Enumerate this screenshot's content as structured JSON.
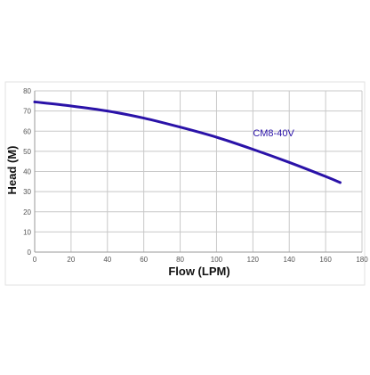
{
  "chart_data": {
    "type": "line",
    "title": "",
    "xlabel": "Flow (LPM)",
    "ylabel": "Head (M)",
    "xlim": [
      0,
      180
    ],
    "ylim": [
      0,
      80
    ],
    "x_ticks": [
      0,
      20,
      40,
      60,
      80,
      100,
      120,
      140,
      160,
      180
    ],
    "y_ticks": [
      0,
      10,
      20,
      30,
      40,
      50,
      60,
      70,
      80
    ],
    "grid": true,
    "legend": "none",
    "series": [
      {
        "name": "CM8-40V",
        "color": "#2a12a8",
        "x": [
          0,
          20,
          40,
          60,
          80,
          100,
          120,
          140,
          160,
          168
        ],
        "y": [
          74.5,
          72.5,
          70,
          66.5,
          62,
          57,
          51,
          44.5,
          37.5,
          34.5
        ]
      }
    ]
  }
}
